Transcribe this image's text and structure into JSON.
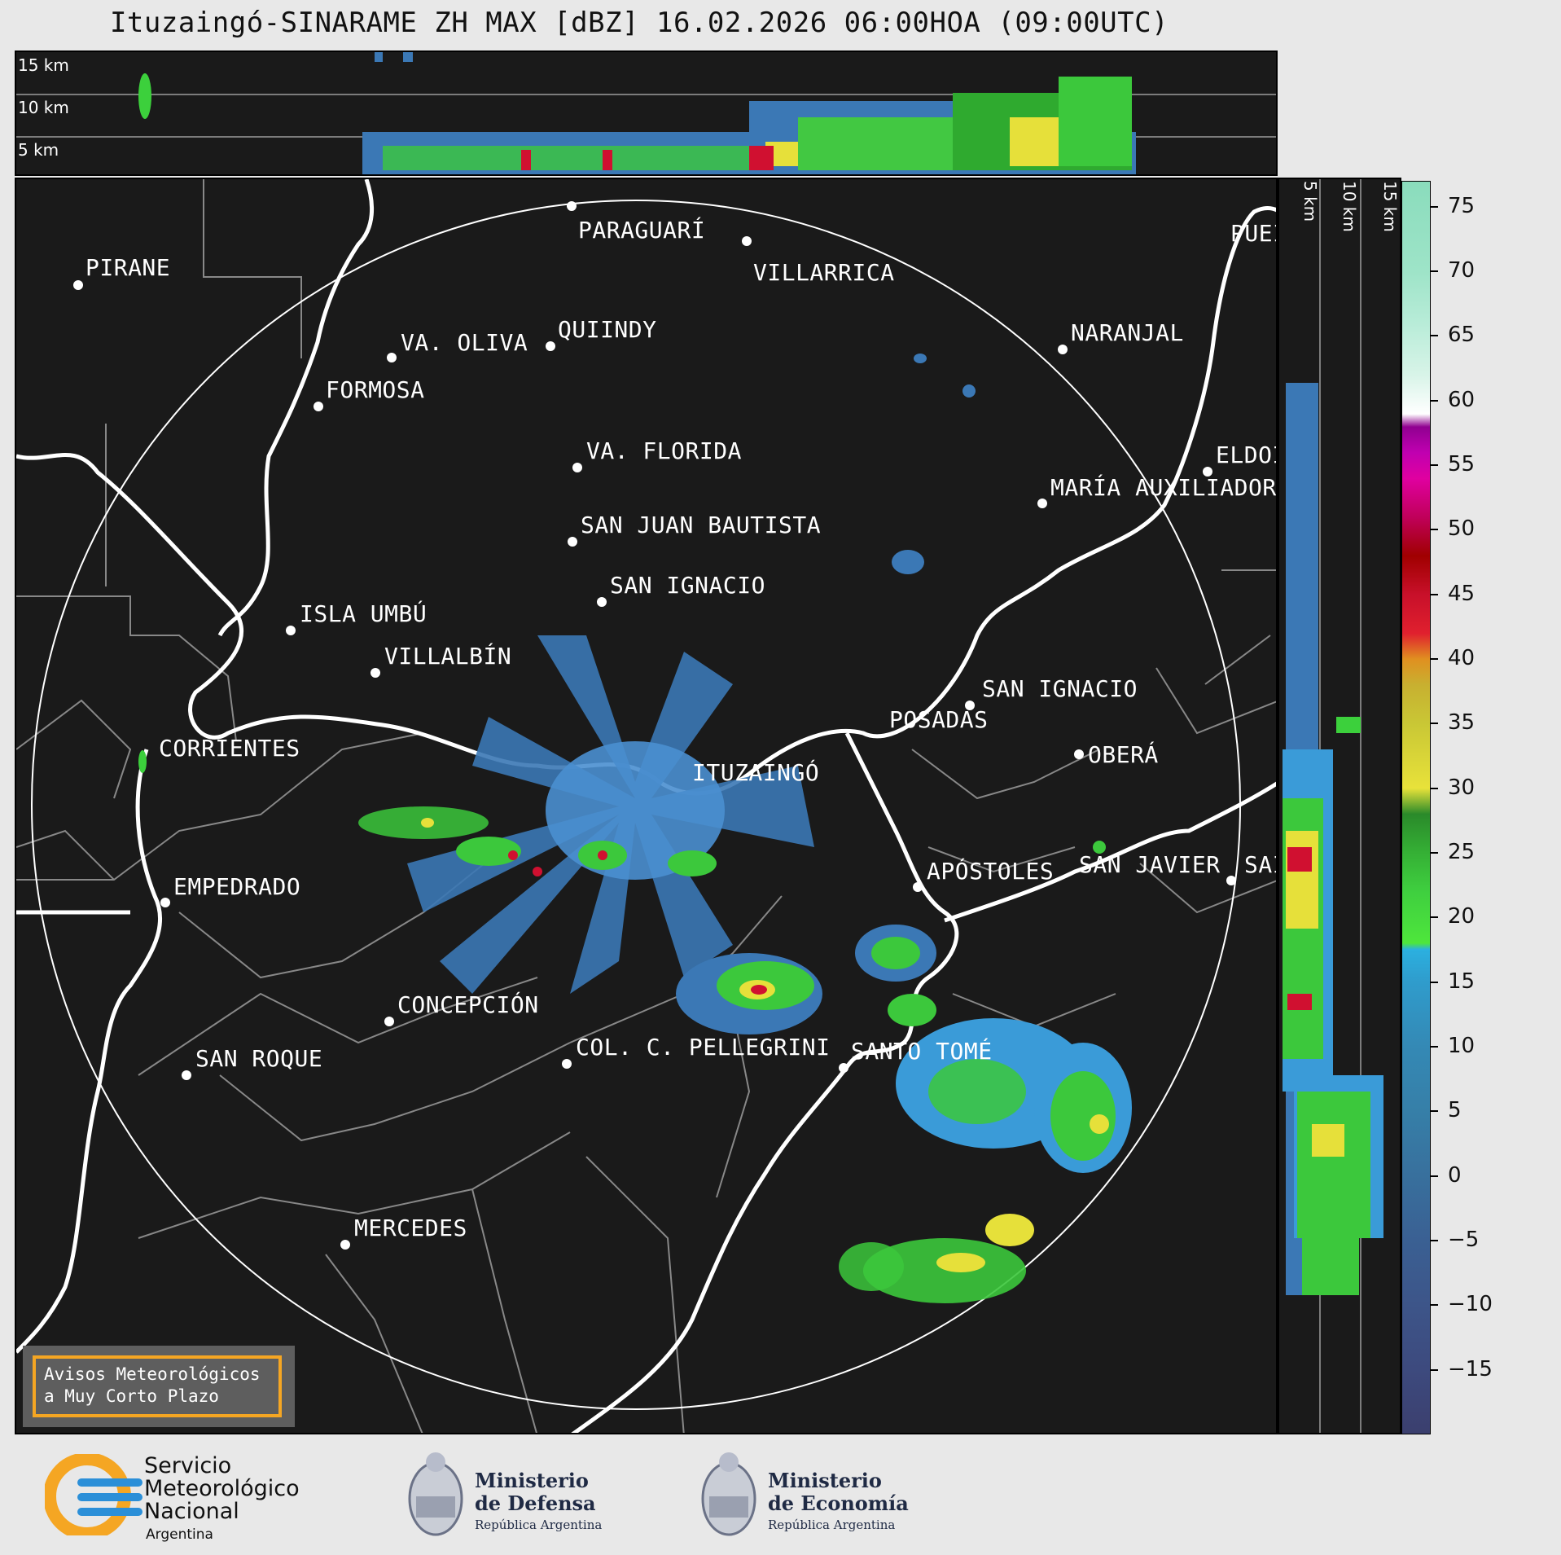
{
  "title": "Ituzaingó-SINARAME ZH MAX [dBZ] 16.02.2026 06:00HOA (09:00UTC)",
  "top_panel": {
    "altitudes": [
      "15 km",
      "10 km",
      "5 km"
    ]
  },
  "side_panel": {
    "altitudes": [
      "5 km",
      "10 km",
      "15 km"
    ]
  },
  "cities": [
    {
      "name": "PARAGUARÍ"
    },
    {
      "name": "VILLARRICA"
    },
    {
      "name": "PIRANE"
    },
    {
      "name": "QUIINDY"
    },
    {
      "name": "VA. OLIVA"
    },
    {
      "name": "NARANJAL"
    },
    {
      "name": "FORMOSA"
    },
    {
      "name": "PUEI"
    },
    {
      "name": "VA. FLORIDA"
    },
    {
      "name": "ELDOI"
    },
    {
      "name": "MARÍA AUXILIADOR"
    },
    {
      "name": "SAN JUAN BAUTISTA"
    },
    {
      "name": "SAN IGNACIO"
    },
    {
      "name": "ISLA UMBÚ"
    },
    {
      "name": "VILLALBÍN"
    },
    {
      "name": "SAN IGNACIO"
    },
    {
      "name": "POSADAS"
    },
    {
      "name": "CORRIENTES"
    },
    {
      "name": "OBERÁ"
    },
    {
      "name": "ITUZAINGÓ"
    },
    {
      "name": "APÓSTOLES"
    },
    {
      "name": "SAN JAVIER"
    },
    {
      "name": "SAI"
    },
    {
      "name": "EMPEDRADO"
    },
    {
      "name": "CONCEPCIÓN"
    },
    {
      "name": "COL. C. PELLEGRINI"
    },
    {
      "name": "SANTO TOMÉ"
    },
    {
      "name": "SAN ROQUE"
    },
    {
      "name": "MERCEDES"
    }
  ],
  "aviso": {
    "line1": "Avisos Meteorológicos",
    "line2": "a Muy Corto Plazo"
  },
  "colorbar": {
    "ticks": [
      "75",
      "70",
      "65",
      "60",
      "55",
      "50",
      "45",
      "40",
      "35",
      "30",
      "25",
      "20",
      "15",
      "10",
      "5",
      "0",
      "−5",
      "−10",
      "−15"
    ],
    "range": [
      -20,
      77
    ]
  },
  "logos": {
    "smn": [
      "Servicio",
      "Meteorológico",
      "Nacional",
      "Argentina"
    ],
    "defensa": [
      "Ministerio",
      "de Defensa",
      "República Argentina"
    ],
    "economia": [
      "Ministerio",
      "de Economía",
      "República Argentina"
    ]
  },
  "colors": {
    "background": "#1a1a1a",
    "aviso_border": "#f5a623",
    "light_blue": "#4a8fd0",
    "green": "#3fcf3f",
    "yellow": "#e8e23a",
    "red": "#d01030"
  }
}
